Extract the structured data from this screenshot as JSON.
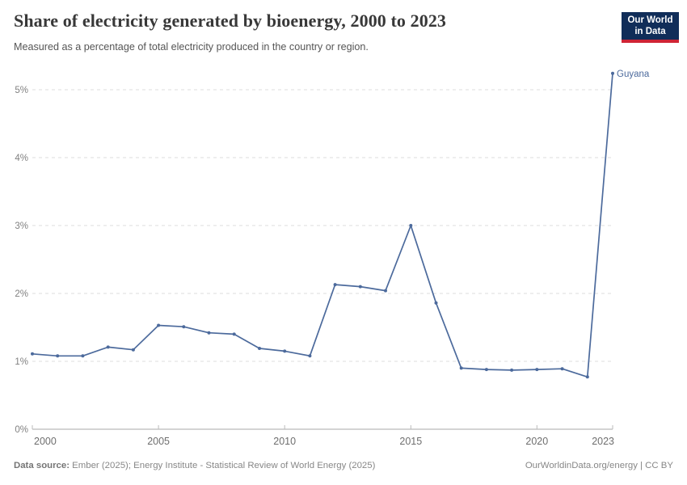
{
  "header": {
    "logo": {
      "line1": "Our World",
      "line2": "in Data"
    }
  },
  "chart_data": {
    "type": "line",
    "title": "Share of electricity generated by bioenergy, 2000 to 2023",
    "subtitle": "Measured as a percentage of total electricity produced in the country or region.",
    "series": [
      {
        "name": "Guyana",
        "color": "#4c6a9c",
        "x": [
          2000,
          2001,
          2002,
          2003,
          2004,
          2005,
          2006,
          2007,
          2008,
          2009,
          2010,
          2011,
          2012,
          2013,
          2014,
          2015,
          2016,
          2017,
          2018,
          2019,
          2020,
          2021,
          2022,
          2023
        ],
        "values": [
          1.11,
          1.08,
          1.08,
          1.21,
          1.17,
          1.53,
          1.51,
          1.42,
          1.4,
          1.19,
          1.15,
          1.08,
          2.13,
          2.1,
          2.04,
          3.0,
          1.86,
          0.9,
          0.88,
          0.87,
          0.88,
          0.89,
          0.77,
          5.24
        ]
      }
    ],
    "xlabel": "",
    "ylabel": "",
    "xlim": [
      2000,
      2023
    ],
    "ylim": [
      0,
      5.5
    ],
    "yticks": [
      0,
      1,
      2,
      3,
      4,
      5
    ],
    "ytick_suffix": "%",
    "xticks": [
      2000,
      2005,
      2010,
      2015,
      2020,
      2023
    ],
    "grid": "horizontal-dashed",
    "legend_position": "end-of-line-label",
    "grid_color": "#dddddd",
    "axis_color": "#a9a9a9",
    "tick_color": "#bbbbbb"
  },
  "footer": {
    "datasource_label": "Data source:",
    "datasource_text": " Ember (2025); Energy Institute - Statistical Review of World Energy (2025)",
    "credit": "OurWorldinData.org/energy | CC BY"
  }
}
